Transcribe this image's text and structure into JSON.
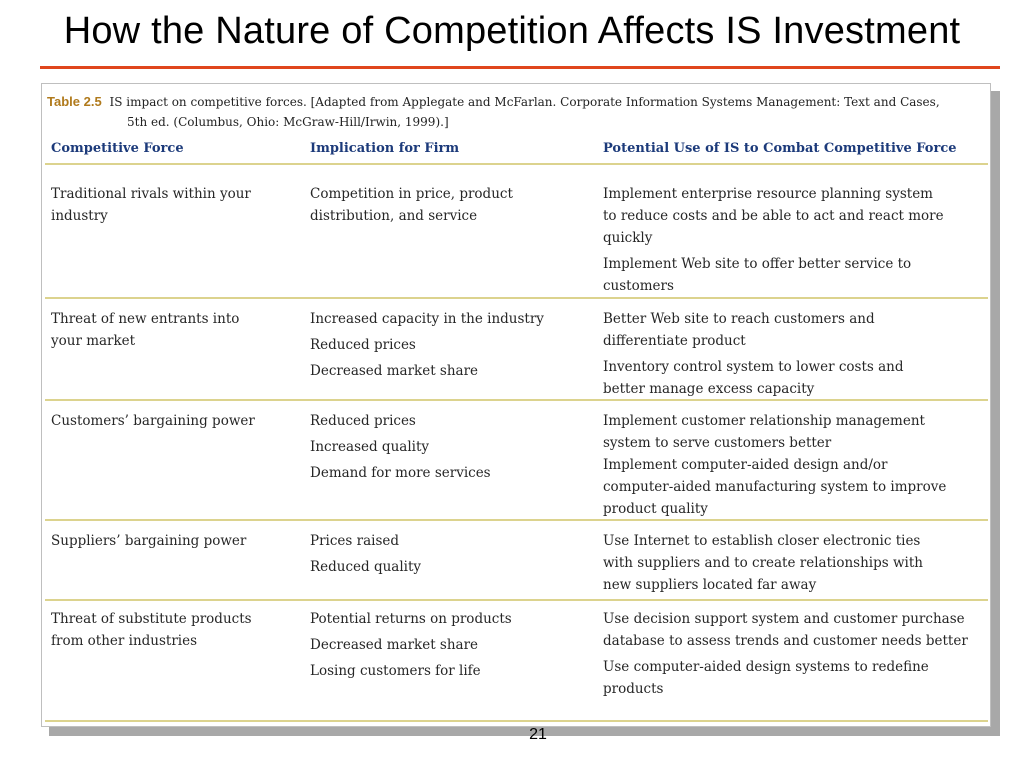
{
  "slide": {
    "title": "How the Nature of Competition Affects IS Investment",
    "page_number": "21"
  },
  "table": {
    "label": "Table 2.5",
    "caption_line1": "IS impact on competitive forces. [Adapted from Applegate and McFarlan. Corporate Information Systems Management: Text and Cases,",
    "caption_line2": "5th ed. (Columbus, Ohio: McGraw-Hill/Irwin, 1999).]",
    "headers": [
      "Competitive Force",
      "Implication for Firm",
      "Potential Use of IS to Combat Competitive Force"
    ],
    "rows": [
      {
        "force": "Traditional rivals within your industry",
        "implications": [
          "Competition in price, product distribution, and service"
        ],
        "uses": [
          "Implement enterprise resource planning system to reduce costs and be able to act and react more quickly",
          "Implement Web site to offer better service to customers"
        ]
      },
      {
        "force": "Threat of new entrants into your market",
        "implications": [
          "Increased capacity in the industry",
          "Reduced prices",
          "Decreased market share"
        ],
        "uses": [
          "Better Web site to reach customers and differentiate product",
          "Inventory control system to lower costs and better manage excess capacity"
        ]
      },
      {
        "force": "Customers’ bargaining power",
        "implications": [
          "Reduced prices",
          "Increased quality",
          "Demand for more services"
        ],
        "uses": [
          "Implement customer relationship management system to serve customers better",
          "Implement computer-aided design and/or computer-aided manufacturing system to improve product quality"
        ]
      },
      {
        "force": "Suppliers’ bargaining power",
        "implications": [
          "Prices raised",
          "Reduced quality"
        ],
        "uses": [
          "Use Internet to establish closer electronic ties with suppliers and to create relationships with new suppliers located far away"
        ]
      },
      {
        "force": "Threat of substitute products from other industries",
        "implications": [
          "Potential returns on products",
          "Decreased market share",
          "Losing customers for life"
        ],
        "uses": [
          "Use decision support system and customer purchase database to assess trends and customer needs better",
          "Use computer-aided design systems to redefine products"
        ]
      }
    ]
  }
}
